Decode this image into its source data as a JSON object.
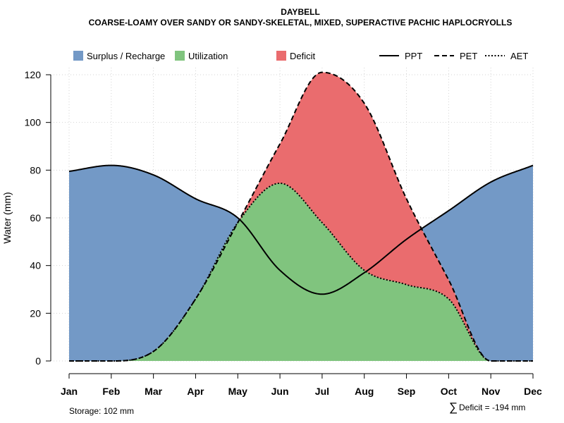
{
  "chart_data": {
    "type": "area",
    "title": "DAYBELL",
    "subtitle": "COARSE-LOAMY OVER SANDY OR SANDY-SKELETAL, MIXED, SUPERACTIVE PACHIC HAPLOCRYOLLS",
    "xlabel": "",
    "ylabel": "Water (mm)",
    "categories": [
      "Jan",
      "Feb",
      "Mar",
      "Apr",
      "May",
      "Jun",
      "Jul",
      "Aug",
      "Sep",
      "Oct",
      "Nov",
      "Dec"
    ],
    "ylim": [
      0,
      120
    ],
    "yticks": [
      "0",
      "20",
      "40",
      "60",
      "80",
      "100",
      "120"
    ],
    "grid": true,
    "series": [
      {
        "name": "PPT",
        "line": "solid",
        "values": [
          79.5,
          82,
          78,
          68,
          60,
          38,
          28,
          37,
          51,
          63,
          75,
          82
        ]
      },
      {
        "name": "PET",
        "line": "dashed",
        "values": [
          0,
          0,
          4,
          26,
          58,
          91,
          121,
          108,
          68,
          34,
          0,
          0
        ]
      },
      {
        "name": "AET",
        "line": "dotted",
        "values": [
          0,
          0,
          4,
          26,
          58,
          74.5,
          58,
          38,
          32,
          26,
          0,
          0
        ]
      }
    ],
    "areas": [
      {
        "name": "Surplus / Recharge",
        "color": "#7399c6"
      },
      {
        "name": "Utilization",
        "color": "#80c47e"
      },
      {
        "name": "Deficit",
        "color": "#ea6c6e"
      }
    ],
    "legend": {
      "placement": "top",
      "items": [
        {
          "label": "Surplus / Recharge",
          "kind": "box",
          "color": "#7399c6"
        },
        {
          "label": "Utilization",
          "kind": "box",
          "color": "#80c47e"
        },
        {
          "label": "Deficit",
          "kind": "box",
          "color": "#ea6c6e"
        },
        {
          "label": "PPT",
          "kind": "line",
          "dash": "solid"
        },
        {
          "label": "PET",
          "kind": "line",
          "dash": "dashed"
        },
        {
          "label": "AET",
          "kind": "line",
          "dash": "dotted"
        }
      ]
    },
    "annotations": {
      "storage": "Storage: 102 mm",
      "deficit_symbol": "∑",
      "deficit": "Deficit = -194 mm"
    }
  }
}
